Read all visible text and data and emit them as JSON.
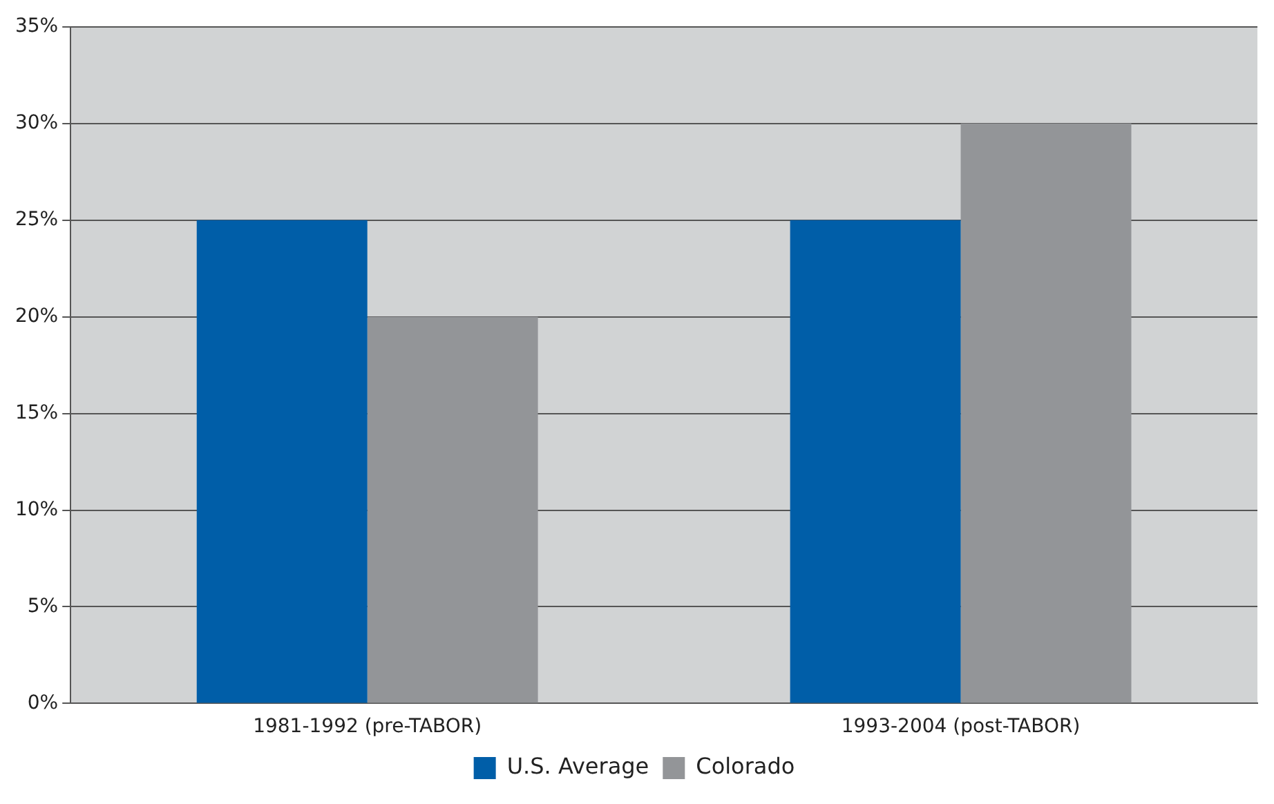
{
  "chart_data": {
    "type": "bar",
    "categories": [
      "1981-1992 (pre-TABOR)",
      "1993-2004 (post-TABOR)"
    ],
    "series": [
      {
        "name": "U.S. Average",
        "color": "#005ea8",
        "values": [
          25,
          25
        ]
      },
      {
        "name": "Colorado",
        "color": "#939598",
        "values": [
          20,
          30
        ]
      }
    ],
    "ylim": [
      0,
      35
    ],
    "yticks": [
      {
        "value": 0,
        "label": "0%"
      },
      {
        "value": 5,
        "label": "5%"
      },
      {
        "value": 10,
        "label": "10%"
      },
      {
        "value": 15,
        "label": "15%"
      },
      {
        "value": 20,
        "label": "20%"
      },
      {
        "value": 25,
        "label": "25%"
      },
      {
        "value": 30,
        "label": "30%"
      },
      {
        "value": 35,
        "label": "35%"
      }
    ],
    "grid": "y",
    "legend": "bottom"
  }
}
